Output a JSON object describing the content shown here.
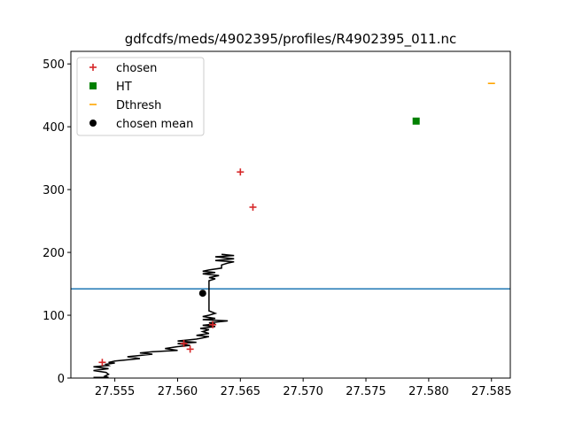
{
  "chart_data": {
    "type": "scatter",
    "title": "gdfcdfs/meds/4902395/profiles/R4902395_011.nc",
    "xlabel": "",
    "ylabel": "",
    "xlim": [
      27.5515,
      27.5865
    ],
    "ylim": [
      0,
      520
    ],
    "x_ticks": [
      27.555,
      27.56,
      27.565,
      27.57,
      27.575,
      27.58,
      27.585
    ],
    "x_tick_labels": [
      "27.555",
      "27.560",
      "27.565",
      "27.570",
      "27.575",
      "27.580",
      "27.585"
    ],
    "y_ticks": [
      0,
      100,
      200,
      300,
      400,
      500
    ],
    "y_tick_labels": [
      "0",
      "100",
      "200",
      "300",
      "400",
      "500"
    ],
    "grid": false,
    "legend_placement": "top-left",
    "hline": {
      "y": 142,
      "color": "#1f77b4"
    },
    "profile": {
      "color": "#000000",
      "points": [
        [
          27.5533,
          1
        ],
        [
          27.5545,
          1
        ],
        [
          27.5542,
          3
        ],
        [
          27.5545,
          6
        ],
        [
          27.5543,
          9
        ],
        [
          27.5533,
          12
        ],
        [
          27.5545,
          15
        ],
        [
          27.5533,
          18
        ],
        [
          27.5545,
          20
        ],
        [
          27.5543,
          22
        ],
        [
          27.555,
          24
        ],
        [
          27.5545,
          25
        ],
        [
          27.555,
          27
        ],
        [
          27.556,
          29
        ],
        [
          27.557,
          31
        ],
        [
          27.556,
          34
        ],
        [
          27.557,
          36
        ],
        [
          27.558,
          38
        ],
        [
          27.557,
          40
        ],
        [
          27.558,
          42
        ],
        [
          27.56,
          44
        ],
        [
          27.559,
          47
        ],
        [
          27.56,
          50
        ],
        [
          27.561,
          52
        ],
        [
          27.56,
          55
        ],
        [
          27.5615,
          57
        ],
        [
          27.56,
          59
        ],
        [
          27.5615,
          62
        ],
        [
          27.562,
          64
        ],
        [
          27.5625,
          66
        ],
        [
          27.5615,
          68
        ],
        [
          27.5625,
          71
        ],
        [
          27.562,
          74
        ],
        [
          27.5625,
          77
        ],
        [
          27.5618,
          79
        ],
        [
          27.563,
          82
        ],
        [
          27.562,
          84
        ],
        [
          27.563,
          86
        ],
        [
          27.5625,
          88
        ],
        [
          27.564,
          91
        ],
        [
          27.562,
          93
        ],
        [
          27.563,
          95
        ],
        [
          27.562,
          98
        ],
        [
          27.5625,
          100
        ],
        [
          27.563,
          103
        ],
        [
          27.5625,
          107
        ],
        [
          27.5625,
          113
        ],
        [
          27.5625,
          120
        ],
        [
          27.5625,
          128
        ],
        [
          27.5625,
          135
        ],
        [
          27.5625,
          140
        ],
        [
          27.5625,
          145
        ],
        [
          27.5625,
          150
        ],
        [
          27.5625,
          155
        ],
        [
          27.563,
          158
        ],
        [
          27.5625,
          160
        ],
        [
          27.5633,
          163
        ],
        [
          27.562,
          166
        ],
        [
          27.563,
          168
        ],
        [
          27.562,
          170
        ],
        [
          27.5625,
          172
        ],
        [
          27.5635,
          175
        ],
        [
          27.5635,
          180
        ],
        [
          27.564,
          183
        ],
        [
          27.5645,
          185
        ],
        [
          27.563,
          187
        ],
        [
          27.5645,
          190
        ],
        [
          27.563,
          193
        ],
        [
          27.5645,
          195
        ],
        [
          27.5635,
          197
        ]
      ]
    },
    "series": [
      {
        "name": "chosen",
        "marker": "plus",
        "color": "#d62728",
        "points": [
          [
            27.554,
            25
          ],
          [
            27.5605,
            55
          ],
          [
            27.561,
            46
          ],
          [
            27.5628,
            85
          ],
          [
            27.565,
            328
          ],
          [
            27.566,
            272
          ]
        ]
      },
      {
        "name": "HT",
        "marker": "square",
        "color": "#008000",
        "points": [
          [
            27.579,
            409
          ]
        ]
      },
      {
        "name": "Dthresh",
        "marker": "hline",
        "color": "#ffa500",
        "points": [
          [
            27.585,
            469
          ]
        ]
      },
      {
        "name": "chosen mean",
        "marker": "circle",
        "color": "#000000",
        "points": [
          [
            27.562,
            135
          ]
        ]
      }
    ]
  }
}
